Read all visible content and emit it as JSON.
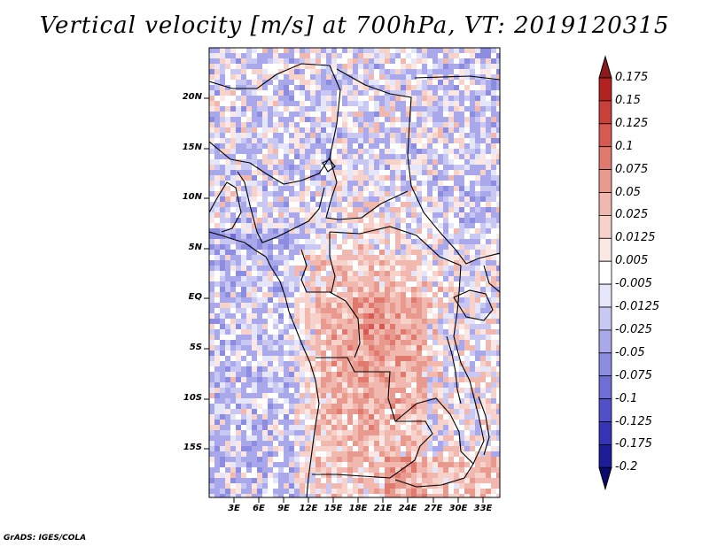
{
  "title": "Vertical velocity [m/s] at 700hPa, VT: 2019120315",
  "credit": "GrADS: IGES/COLA",
  "lat_labels": [
    "20N",
    "15N",
    "10N",
    "5N",
    "EQ",
    "5S",
    "10S",
    "15S"
  ],
  "lon_labels": [
    "3E",
    "6E",
    "9E",
    "12E",
    "15E",
    "18E",
    "21E",
    "24E",
    "27E",
    "30E",
    "33E"
  ],
  "colorbar": {
    "labels": [
      "0.175",
      "0.15",
      "0.125",
      "0.1",
      "0.075",
      "0.05",
      "0.025",
      "0.0125",
      "0.005",
      "-0.005",
      "-0.0125",
      "-0.025",
      "-0.05",
      "-0.075",
      "-0.1",
      "-0.125",
      "-0.175",
      "-0.2"
    ],
    "colors": [
      "#8c1a1a",
      "#b22222",
      "#c8403a",
      "#d65a52",
      "#e07a6e",
      "#e89a8e",
      "#f0b8ae",
      "#f6d2cb",
      "#fbe8e4",
      "#ffffff",
      "#e6e6fa",
      "#c8c8f2",
      "#a8a8ea",
      "#8c8ce0",
      "#6e6ed6",
      "#5050c8",
      "#3434b4",
      "#1c1c96",
      "#0a0a6e"
    ]
  },
  "colors": {
    "positive": "#d94f4f",
    "negative": "#6a6ad8",
    "boundary": "#000000"
  }
}
